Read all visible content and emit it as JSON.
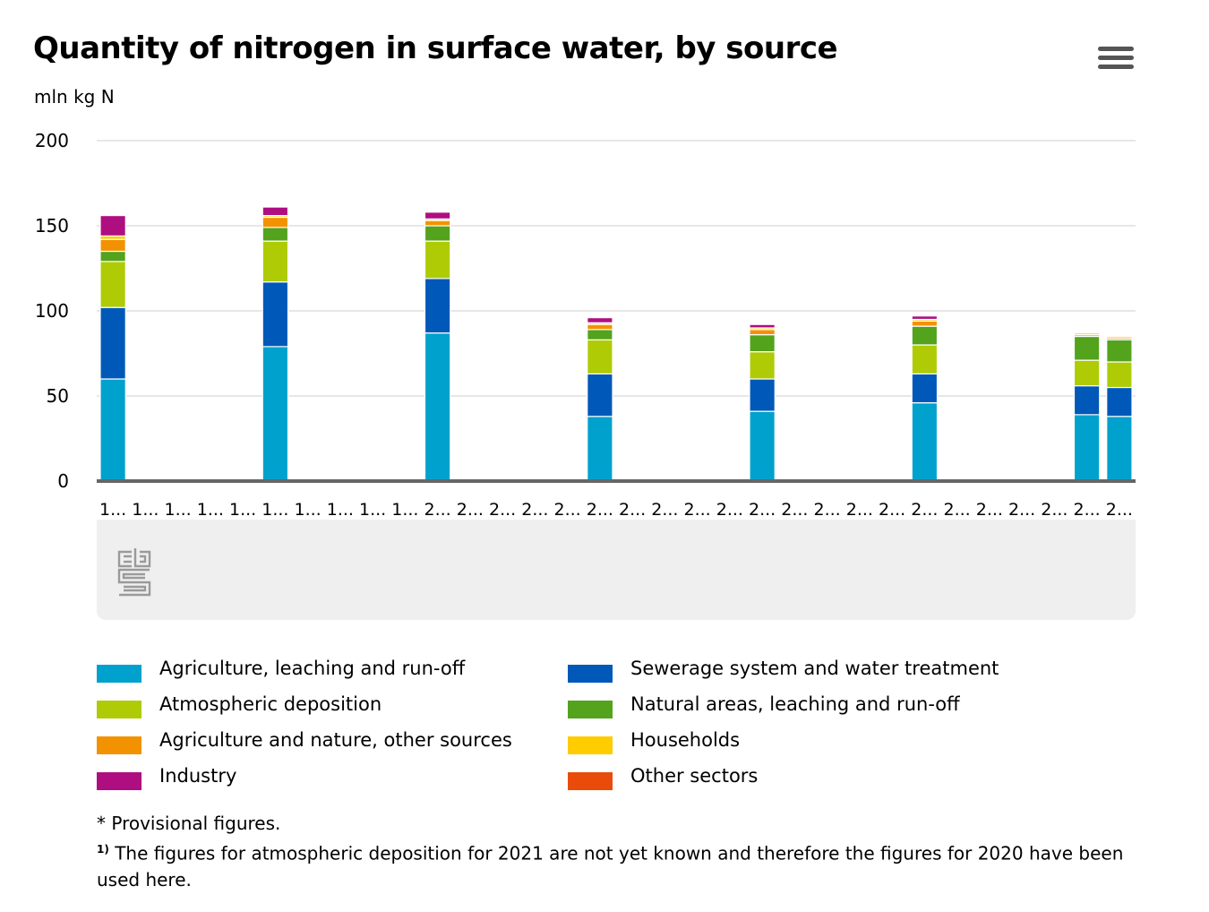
{
  "title": "Quantity of nitrogen in surface water, by source",
  "unit_label": "mln kg N",
  "menu_icon": "hamburger-menu-icon",
  "logo_icon": "cbs-logo-icon",
  "notes": {
    "provisional": "* Provisional figures.",
    "footnote_marker": "1)",
    "footnote_text": " The figures for atmospheric deposition for 2021 are not yet known and therefore the figures for 2020 have been used here."
  },
  "chart_data": {
    "type": "bar",
    "stacked": true,
    "title": "Quantity of nitrogen in surface water, by source",
    "ylabel": "mln kg N",
    "ylim": [
      0,
      200
    ],
    "yticks": [
      0,
      50,
      100,
      150,
      200
    ],
    "grid": true,
    "legend_position": "bottom",
    "categories": [
      "1...",
      "1...",
      "1...",
      "1...",
      "1...",
      "1...",
      "1...",
      "1...",
      "1...",
      "1...",
      "2...",
      "2...",
      "2...",
      "2...",
      "2...",
      "2...",
      "2...",
      "2...",
      "2...",
      "2...",
      "2...",
      "2...",
      "2...",
      "2...",
      "2...",
      "2...",
      "2...",
      "2...",
      "2...",
      "2...",
      "2...",
      "2..."
    ],
    "series": [
      {
        "name": "Agriculture, leaching and run-off",
        "color": "#00a1cd",
        "values": [
          60,
          null,
          null,
          null,
          null,
          79,
          null,
          null,
          null,
          null,
          87,
          null,
          null,
          null,
          null,
          38,
          null,
          null,
          null,
          null,
          41,
          null,
          null,
          null,
          null,
          46,
          null,
          null,
          null,
          null,
          39,
          38
        ]
      },
      {
        "name": "Sewerage system and water treatment",
        "color": "#0058b8",
        "values": [
          42,
          null,
          null,
          null,
          null,
          38,
          null,
          null,
          null,
          null,
          32,
          null,
          null,
          null,
          null,
          25,
          null,
          null,
          null,
          null,
          19,
          null,
          null,
          null,
          null,
          17,
          null,
          null,
          null,
          null,
          17,
          17
        ]
      },
      {
        "name": "Atmospheric deposition",
        "color": "#afcb05",
        "values": [
          27,
          null,
          null,
          null,
          null,
          24,
          null,
          null,
          null,
          null,
          22,
          null,
          null,
          null,
          null,
          20,
          null,
          null,
          null,
          null,
          16,
          null,
          null,
          null,
          null,
          17,
          null,
          null,
          null,
          null,
          15,
          15
        ]
      },
      {
        "name": "Natural areas, leaching and run-off",
        "color": "#53a31d",
        "values": [
          6,
          null,
          null,
          null,
          null,
          8,
          null,
          null,
          null,
          null,
          9,
          null,
          null,
          null,
          null,
          6,
          null,
          null,
          null,
          null,
          10,
          null,
          null,
          null,
          null,
          11,
          null,
          null,
          null,
          null,
          14,
          13
        ]
      },
      {
        "name": "Agriculture and nature, other sources",
        "color": "#f39200",
        "values": [
          7,
          null,
          null,
          null,
          null,
          6,
          null,
          null,
          null,
          null,
          3,
          null,
          null,
          null,
          null,
          3,
          null,
          null,
          null,
          null,
          3,
          null,
          null,
          null,
          null,
          3,
          null,
          null,
          null,
          null,
          1,
          1
        ]
      },
      {
        "name": "Households",
        "color": "#ffcc00",
        "values": [
          2,
          null,
          null,
          null,
          null,
          1,
          null,
          null,
          null,
          null,
          1,
          null,
          null,
          null,
          null,
          1,
          null,
          null,
          null,
          null,
          1,
          null,
          null,
          null,
          null,
          1,
          null,
          null,
          null,
          null,
          1,
          1
        ]
      },
      {
        "name": "Industry",
        "color": "#af0e80",
        "values": [
          12,
          null,
          null,
          null,
          null,
          5,
          null,
          null,
          null,
          null,
          4,
          null,
          null,
          null,
          null,
          3,
          null,
          null,
          null,
          null,
          2,
          null,
          null,
          null,
          null,
          2,
          null,
          null,
          null,
          null,
          0,
          0
        ]
      },
      {
        "name": "Other sectors",
        "color": "#e94c0a",
        "values": [
          0,
          null,
          null,
          null,
          null,
          0,
          null,
          null,
          null,
          null,
          0,
          null,
          null,
          null,
          null,
          0,
          null,
          null,
          null,
          null,
          0,
          null,
          null,
          null,
          null,
          0,
          null,
          null,
          null,
          null,
          0,
          0
        ]
      }
    ]
  }
}
